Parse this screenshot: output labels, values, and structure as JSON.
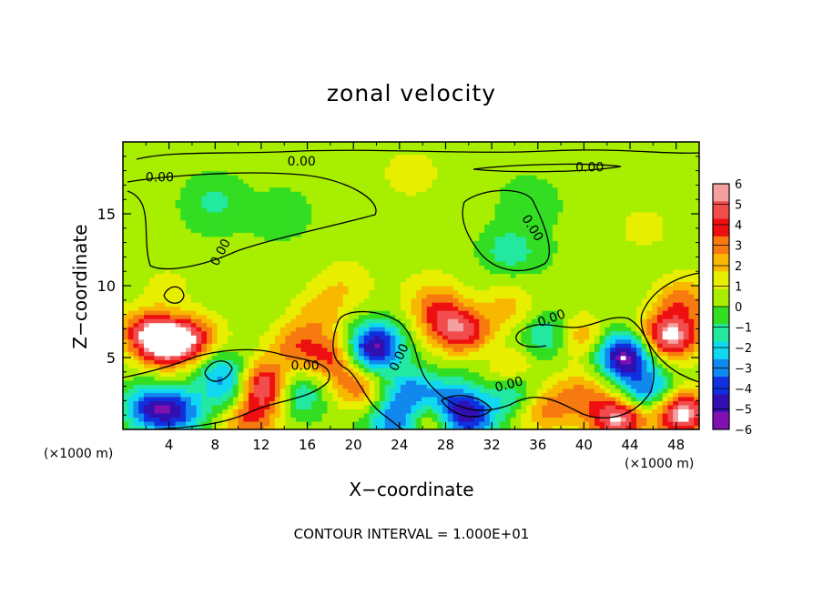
{
  "chart_data": {
    "type": "heatmap",
    "title": "zonal velocity",
    "xlabel": "X−coordinate",
    "ylabel": "Z−coordinate",
    "x_unit_left": "(×1000 m)",
    "x_unit_right": "(×1000 m)",
    "footnote": "CONTOUR INTERVAL = 1.000E+01",
    "xlim": [
      0,
      50
    ],
    "ylim": [
      0,
      20
    ],
    "x_ticks": [
      4,
      8,
      12,
      16,
      20,
      24,
      28,
      32,
      36,
      40,
      44,
      48
    ],
    "x_tick_labels": [
      "4",
      "8",
      "12",
      "16",
      "20",
      "24",
      "28",
      "32",
      "36",
      "40",
      "44",
      "48"
    ],
    "y_ticks": [
      5,
      10,
      15
    ],
    "y_tick_labels": [
      "5",
      "10",
      "15"
    ],
    "colorbar": {
      "ticks": [
        6,
        5,
        4,
        3,
        2,
        1,
        0,
        -1,
        -2,
        -3,
        -4,
        -5,
        -6
      ],
      "labels": [
        "6",
        "5",
        "4",
        "3",
        "2",
        "1",
        "0",
        "−1",
        "−2",
        "−3",
        "−4",
        "−5",
        "−6"
      ],
      "colors": [
        "#f5a0a0",
        "#f24d4d",
        "#ee1010",
        "#f77a10",
        "#f8b800",
        "#e8ee00",
        "#a8ee00",
        "#33dd22",
        "#22e8a0",
        "#10d8f0",
        "#1088ee",
        "#1030e0",
        "#3010b0",
        "#8010b0"
      ]
    },
    "background_value": 0.4,
    "features": [
      {
        "x": 2.5,
        "z": 1.5,
        "v": -5
      },
      {
        "x": 4,
        "z": 6,
        "v": 7
      },
      {
        "x": 2,
        "z": 6.8,
        "v": 4
      },
      {
        "x": 6.5,
        "z": 6.5,
        "v": 3
      },
      {
        "x": 5,
        "z": 1.2,
        "v": -4
      },
      {
        "x": 10,
        "z": 2.5,
        "v": -4
      },
      {
        "x": 12,
        "z": 3,
        "v": 7
      },
      {
        "x": 8.5,
        "z": 4,
        "v": -3
      },
      {
        "x": 15,
        "z": 2.5,
        "v": -3
      },
      {
        "x": 15,
        "z": 5.8,
        "v": 3
      },
      {
        "x": 11,
        "z": 1,
        "v": 4
      },
      {
        "x": 18.5,
        "z": 5,
        "v": 4
      },
      {
        "x": 20.5,
        "z": 3,
        "v": 3.5
      },
      {
        "x": 22,
        "z": 6,
        "v": -5
      },
      {
        "x": 21,
        "z": 5,
        "v": -3
      },
      {
        "x": 24,
        "z": 0.5,
        "v": -5
      },
      {
        "x": 25,
        "z": 2.5,
        "v": -4
      },
      {
        "x": 26,
        "z": 0.8,
        "v": 4
      },
      {
        "x": 28.5,
        "z": 2,
        "v": -3
      },
      {
        "x": 30,
        "z": 0.8,
        "v": -5
      },
      {
        "x": 28,
        "z": 7.5,
        "v": 3.5
      },
      {
        "x": 30,
        "z": 6.5,
        "v": 4
      },
      {
        "x": 32,
        "z": 5,
        "v": -3
      },
      {
        "x": 33,
        "z": 4.5,
        "v": 4
      },
      {
        "x": 34,
        "z": 2.5,
        "v": -3
      },
      {
        "x": 36.5,
        "z": 1.5,
        "v": 3
      },
      {
        "x": 37,
        "z": 6.5,
        "v": -3
      },
      {
        "x": 40,
        "z": 2.5,
        "v": 2.5
      },
      {
        "x": 39.5,
        "z": 6.5,
        "v": 3
      },
      {
        "x": 43.5,
        "z": 5.2,
        "v": -7
      },
      {
        "x": 44.5,
        "z": 3,
        "v": -2
      },
      {
        "x": 43,
        "z": 0.8,
        "v": 6
      },
      {
        "x": 48,
        "z": 6.5,
        "v": 4
      },
      {
        "x": 48.5,
        "z": 9,
        "v": 3
      },
      {
        "x": 48.5,
        "z": 1.2,
        "v": 7
      },
      {
        "x": 46,
        "z": 2.5,
        "v": -3
      },
      {
        "x": 46.5,
        "z": 6.5,
        "v": 3
      },
      {
        "x": 17,
        "z": 8,
        "v": 2
      },
      {
        "x": 27,
        "z": 9,
        "v": 2
      },
      {
        "x": 33.5,
        "z": 8.5,
        "v": 2
      },
      {
        "x": 8,
        "z": 16,
        "v": -1.5
      },
      {
        "x": 14,
        "z": 15,
        "v": -1.2
      },
      {
        "x": 33.5,
        "z": 12.5,
        "v": -2
      },
      {
        "x": 35,
        "z": 16,
        "v": -1
      },
      {
        "x": 19,
        "z": 10,
        "v": 1.3
      },
      {
        "x": 4,
        "z": 10,
        "v": 1.2
      },
      {
        "x": 45,
        "z": 14,
        "v": 1.2
      },
      {
        "x": 25,
        "z": 18,
        "v": 1.2
      }
    ],
    "contour_labels": [
      {
        "text": "0.00",
        "x": 15.5,
        "z": 18.6,
        "angle": 0
      },
      {
        "text": "0.00",
        "x": 3.2,
        "z": 17.5,
        "angle": 0
      },
      {
        "text": "0.00",
        "x": 40.5,
        "z": 18.2,
        "angle": 0
      },
      {
        "text": "0.00",
        "x": 8.5,
        "z": 12.3,
        "angle": -62
      },
      {
        "text": "0.00",
        "x": 35.5,
        "z": 14,
        "angle": 58
      },
      {
        "text": "0.00",
        "x": 15.8,
        "z": 4.4,
        "angle": 0
      },
      {
        "text": "0.00",
        "x": 24,
        "z": 5,
        "angle": -65
      },
      {
        "text": "0.00",
        "x": 37.2,
        "z": 7.7,
        "angle": -20
      },
      {
        "text": "0.00",
        "x": 33.5,
        "z": 3.1,
        "angle": -15
      }
    ]
  }
}
